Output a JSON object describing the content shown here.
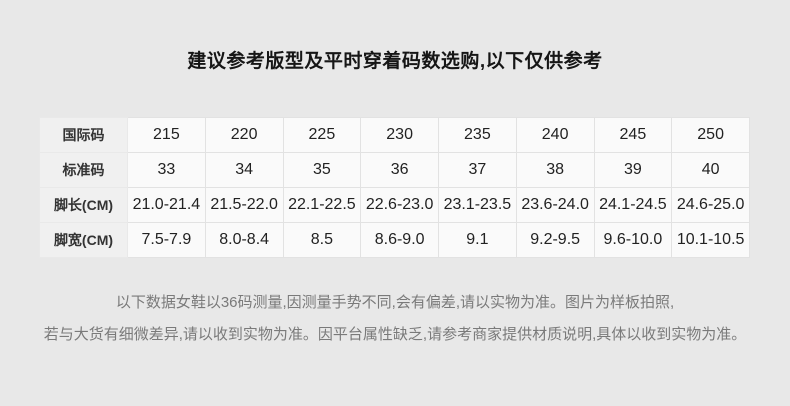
{
  "page": {
    "title": "建议参考版型及平时穿着码数选购,以下仅供参考",
    "colors": {
      "page_background": "#e8e8e8",
      "label_cell_background": "#f0f0f0",
      "data_cell_background": "#fafafa",
      "cell_border": "#e2e2e2",
      "title_text": "#161616",
      "disclaimer_text": "#7a7a7a"
    }
  },
  "size_table": {
    "rows": [
      {
        "label": "国际码",
        "values": [
          "215",
          "220",
          "225",
          "230",
          "235",
          "240",
          "245",
          "250"
        ]
      },
      {
        "label": "标准码",
        "values": [
          "33",
          "34",
          "35",
          "36",
          "37",
          "38",
          "39",
          "40"
        ]
      },
      {
        "label": "脚长(CM)",
        "values": [
          "21.0-21.4",
          "21.5-22.0",
          "22.1-22.5",
          "22.6-23.0",
          "23.1-23.5",
          "23.6-24.0",
          "24.1-24.5",
          "24.6-25.0"
        ]
      },
      {
        "label": "脚宽(CM)",
        "values": [
          "7.5-7.9",
          "8.0-8.4",
          "8.5",
          "8.6-9.0",
          "9.1",
          "9.2-9.5",
          "9.6-10.0",
          "10.1-10.5"
        ]
      }
    ]
  },
  "disclaimer": {
    "lines": [
      "以下数据女鞋以36码测量,因测量手势不同,会有偏差,请以实物为准。图片为样板拍照,",
      "若与大货有细微差异,请以收到实物为准。因平台属性缺乏,请参考商家提供材质说明,具体以收到实物为准。"
    ]
  }
}
